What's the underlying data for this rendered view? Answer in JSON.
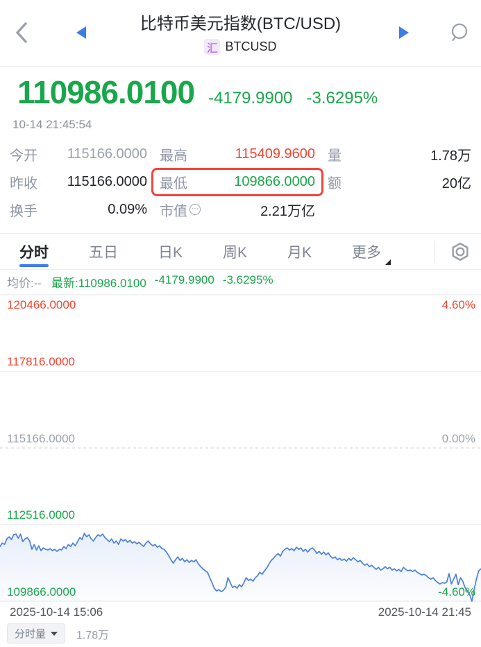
{
  "colors": {
    "up_red": "#f5432f",
    "down_green": "#1aa64b",
    "accent_blue": "#3b7de9",
    "line_blue": "#4b80da",
    "tag_purple": "#a55ce0"
  },
  "header": {
    "title": "比特币美元指数(BTC/USD)",
    "market_tag": "汇",
    "symbol": "BTCUSD"
  },
  "quote": {
    "price": "110986.0100",
    "change": "-4179.9900",
    "change_pct": "-3.6295%",
    "timestamp": "10-14 21:45:54"
  },
  "stats": {
    "cells": [
      {
        "label": "今开",
        "value": "115166.0000"
      },
      {
        "label": "最高",
        "value": "115409.9600"
      },
      {
        "label": "量",
        "value": "1.78万"
      },
      {
        "label": "昨收",
        "value": "115166.0000"
      },
      {
        "label": "最低",
        "value": "109866.0000"
      },
      {
        "label": "额",
        "value": "20亿"
      },
      {
        "label": "换手",
        "value": "0.09%"
      },
      {
        "label": "市值",
        "value": "2.21万亿"
      },
      {
        "label": "",
        "value": ""
      }
    ],
    "info_icon_glyph": "⋯"
  },
  "tabs": {
    "items": [
      "分时",
      "五日",
      "日K",
      "周K",
      "月K",
      "更多"
    ],
    "active": "分时"
  },
  "legend": {
    "avg": "均价:--",
    "latest": "最新:110986.0100",
    "change": "-4179.9900",
    "change_pct": "-3.6295%"
  },
  "chart_data": {
    "type": "line",
    "title": "BTC/USD 分时 (intraday) price line",
    "xlabel": "",
    "ylabel": "",
    "x_start_label": "2025-10-14 15:06",
    "x_end_label": "2025-10-14 21:45",
    "ylim": [
      109866,
      120466
    ],
    "baseline": 115166,
    "grid": "horizontal",
    "y_tick_labels_left": [
      "120466.0000",
      "117816.0000",
      "115166.0000",
      "112516.0000",
      "109866.0000"
    ],
    "y_tick_labels_right": [
      "4.60%",
      "0.00%",
      "-4.60%"
    ],
    "series": [
      {
        "name": "price",
        "values": [
          111758,
          111878,
          111830,
          112022,
          112094,
          111998,
          112166,
          112190,
          112046,
          112190,
          111926,
          112022,
          112070,
          111950,
          111662,
          111830,
          111638,
          111782,
          111614,
          111710,
          111662,
          111638,
          111686,
          111614,
          111662,
          111590,
          111662,
          111638,
          111758,
          111686,
          111830,
          111758,
          111878,
          111782,
          111926,
          112070,
          111998,
          112214,
          112094,
          112166,
          112022,
          111950,
          112070,
          112166,
          112118,
          112190,
          112070,
          111998,
          111926,
          112022,
          111878,
          111950,
          111830,
          112022,
          111950,
          111998,
          111902,
          111974,
          111878,
          111926,
          111854,
          111902,
          111830,
          111758,
          111878,
          111950,
          111854,
          111782,
          111830,
          111734,
          111782,
          111686,
          111662,
          111566,
          111446,
          111302,
          111182,
          111302,
          111398,
          111278,
          111350,
          111230,
          111302,
          111206,
          111278,
          111230,
          111302,
          111158,
          111062,
          110990,
          110918,
          110870,
          110678,
          110510,
          110318,
          110222,
          110270,
          110198,
          110246,
          110342,
          110678,
          110510,
          110342,
          110390,
          110318,
          110438,
          110366,
          110510,
          110678,
          110582,
          110630,
          110558,
          110678,
          110750,
          110870,
          110798,
          110918,
          111014,
          111158,
          111278,
          111350,
          111446,
          111518,
          111422,
          111590,
          111662,
          111710,
          111638,
          111686,
          111614,
          111734,
          111662,
          111710,
          111590,
          111662,
          111566,
          111662,
          111710,
          111638,
          111518,
          111590,
          111494,
          111566,
          111470,
          111542,
          111422,
          111350,
          111398,
          111302,
          111350,
          111278,
          111326,
          111254,
          111350,
          111278,
          111374,
          111302,
          111230,
          111278,
          111182,
          111110,
          111158,
          111062,
          111110,
          111038,
          110966,
          111038,
          110942,
          110990,
          111062,
          110990,
          111038,
          110942,
          110990,
          110918,
          110966,
          110894,
          111038,
          110966,
          110918,
          110942,
          110894,
          110942,
          110870,
          110822,
          110774,
          110798,
          110750,
          110678,
          110630,
          110678,
          110582,
          110510,
          110462,
          110510,
          110486,
          110534,
          110822,
          110462,
          110630,
          110798,
          110438,
          110678,
          110558,
          110342,
          110222,
          110102,
          109866,
          110270,
          110630,
          110918,
          110986
        ]
      }
    ],
    "legend_position": "top-left"
  },
  "xaxis": {
    "left": "2025-10-14 15:06",
    "right": "2025-10-14 21:45"
  },
  "bottom": {
    "volume_label": "分时量",
    "volume_value": "1.78万"
  }
}
